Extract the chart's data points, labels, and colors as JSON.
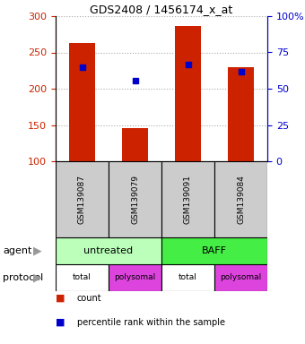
{
  "title": "GDS2408 / 1456174_x_at",
  "samples": [
    "GSM139087",
    "GSM139079",
    "GSM139091",
    "GSM139084"
  ],
  "counts": [
    263,
    146,
    287,
    230
  ],
  "percentile_ranks": [
    230,
    211,
    233,
    224
  ],
  "ylim_left": [
    100,
    300
  ],
  "yticks_left": [
    100,
    150,
    200,
    250,
    300
  ],
  "ylim_right": [
    0,
    100
  ],
  "yticks_right": [
    0,
    25,
    50,
    75,
    100
  ],
  "bar_color": "#cc2200",
  "dot_color": "#0000cc",
  "agent_labels": [
    "untreated",
    "BAFF"
  ],
  "agent_color_untreated": "#bbffbb",
  "agent_color_baff": "#44ee44",
  "protocol_labels": [
    "total",
    "polysomal",
    "total",
    "polysomal"
  ],
  "protocol_color_total": "#ffffff",
  "protocol_color_polysomal": "#dd44dd",
  "color_left": "#cc2200",
  "color_right": "#0000cc",
  "bar_width": 0.5,
  "sample_box_color": "#cccccc"
}
